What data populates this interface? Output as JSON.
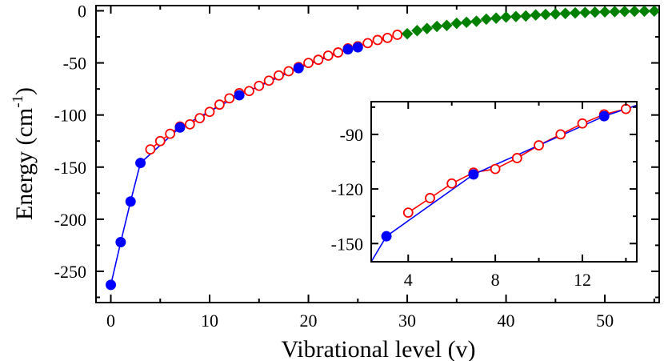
{
  "chart_data": [
    {
      "id": "main",
      "type": "line",
      "title": "",
      "xlabel": "Vibrational level (v)",
      "ylabel_main": "Energy (cm",
      "ylabel_sup": "-1",
      "ylabel_close": ")",
      "xlim": [
        -1.5,
        55.5
      ],
      "ylim": [
        -280,
        5
      ],
      "xticks": [
        0,
        10,
        20,
        30,
        40,
        50
      ],
      "xtick_labels": [
        "0",
        "10",
        "20",
        "30",
        "40",
        "50"
      ],
      "yticks": [
        -250,
        -200,
        -150,
        -100,
        -50,
        0
      ],
      "ytick_labels": [
        "-250",
        "-200",
        "-150",
        "-100",
        "-50",
        "0"
      ],
      "grid": false,
      "series": [
        {
          "name": "blue filled circles",
          "color": "#0000ff",
          "marker": "circle-filled",
          "line": true,
          "points": [
            [
              0,
              -263
            ],
            [
              1,
              -222
            ],
            [
              2,
              -183
            ],
            [
              3,
              -146
            ],
            [
              7,
              -112
            ],
            [
              13,
              -81
            ],
            [
              19,
              -55
            ],
            [
              24,
              -37
            ],
            [
              25,
              -35
            ]
          ]
        },
        {
          "name": "red open circles",
          "color": "#ff0000",
          "marker": "circle-open",
          "line": true,
          "points": [
            [
              4,
              -133
            ],
            [
              5,
              -125
            ],
            [
              6,
              -118
            ],
            [
              7,
              -111
            ],
            [
              8,
              -109
            ],
            [
              9,
              -103
            ],
            [
              10,
              -97
            ],
            [
              11,
              -90
            ],
            [
              12,
              -84
            ],
            [
              13,
              -79
            ],
            [
              14,
              -77
            ],
            [
              15,
              -72
            ],
            [
              16,
              -67
            ],
            [
              17,
              -62
            ],
            [
              18,
              -58
            ],
            [
              19,
              -54
            ],
            [
              20,
              -50
            ],
            [
              21,
              -47
            ],
            [
              22,
              -43
            ],
            [
              23,
              -40
            ],
            [
              24,
              -36
            ],
            [
              25,
              -34
            ],
            [
              26,
              -31
            ],
            [
              27,
              -28
            ],
            [
              28,
              -26
            ],
            [
              29,
              -23
            ]
          ]
        },
        {
          "name": "green diamonds",
          "color": "#008000",
          "marker": "diamond",
          "line": false,
          "points": [
            [
              30,
              -22
            ],
            [
              31,
              -19
            ],
            [
              32,
              -17
            ],
            [
              33,
              -15
            ],
            [
              34,
              -14
            ],
            [
              35,
              -12
            ],
            [
              36,
              -11
            ],
            [
              37,
              -10
            ],
            [
              38,
              -8
            ],
            [
              39,
              -7
            ],
            [
              40,
              -6
            ],
            [
              41,
              -5.5
            ],
            [
              42,
              -5
            ],
            [
              43,
              -4
            ],
            [
              44,
              -3.5
            ],
            [
              45,
              -3
            ],
            [
              46,
              -2.5
            ],
            [
              47,
              -2
            ],
            [
              48,
              -1.6
            ],
            [
              49,
              -1.3
            ],
            [
              50,
              -1
            ],
            [
              51,
              -0.8
            ],
            [
              52,
              -0.6
            ],
            [
              53,
              -0.4
            ],
            [
              54,
              -0.3
            ],
            [
              55,
              -0.2
            ]
          ]
        }
      ]
    },
    {
      "id": "inset",
      "type": "line",
      "title": "",
      "xlabel": "",
      "ylabel": "",
      "xlim": [
        2.3,
        14.5
      ],
      "ylim": [
        -160,
        -72
      ],
      "xticks": [
        4,
        8,
        12
      ],
      "xtick_labels": [
        "4",
        "8",
        "12"
      ],
      "yticks": [
        -150,
        -120,
        -90
      ],
      "ytick_labels": [
        "-150",
        "-120",
        "-90"
      ],
      "grid": false,
      "series": [
        {
          "name": "blue filled circles",
          "color": "#0000ff",
          "marker": "circle-filled",
          "line": true,
          "points": [
            [
              2.3,
              -160
            ],
            [
              3,
              -146
            ],
            [
              7,
              -112
            ],
            [
              13,
              -80
            ],
            [
              14.5,
              -74
            ]
          ]
        },
        {
          "name": "red open circles",
          "color": "#ff0000",
          "marker": "circle-open",
          "line": true,
          "points": [
            [
              4,
              -133
            ],
            [
              5,
              -125
            ],
            [
              6,
              -117
            ],
            [
              7,
              -111
            ],
            [
              8,
              -109
            ],
            [
              9,
              -103
            ],
            [
              10,
              -96
            ],
            [
              11,
              -90
            ],
            [
              12,
              -84
            ],
            [
              13,
              -79
            ],
            [
              14,
              -76
            ],
            [
              14.5,
              -74
            ]
          ]
        }
      ]
    }
  ]
}
